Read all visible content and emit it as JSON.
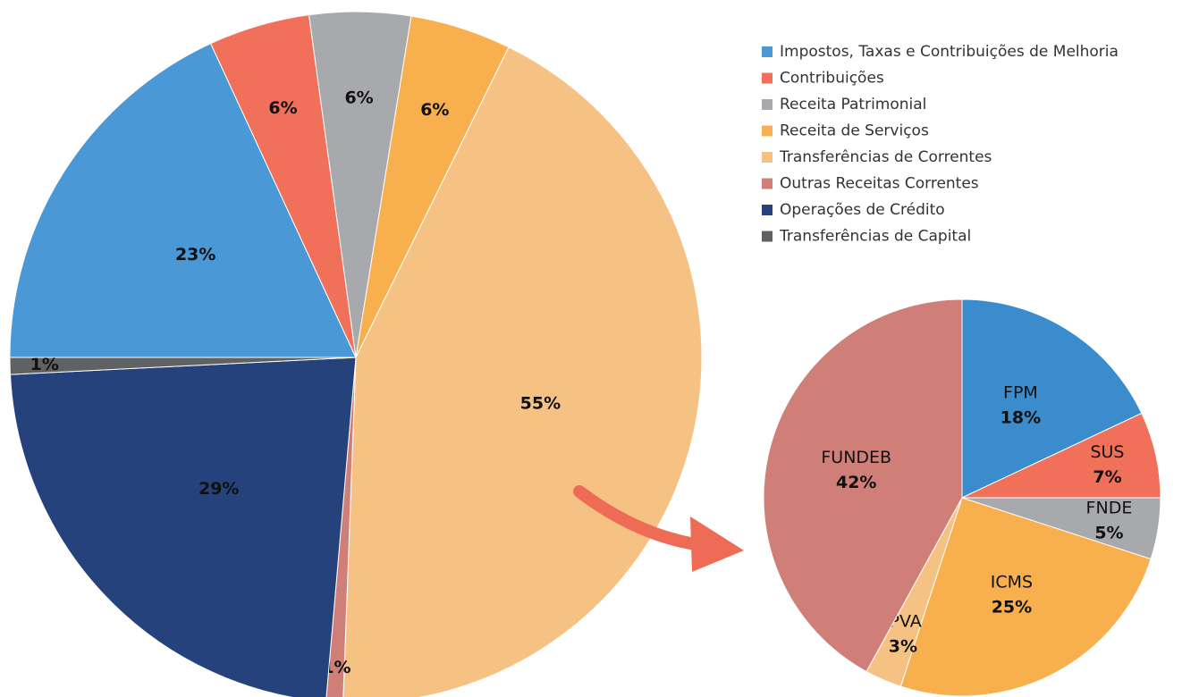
{
  "chart_data": [
    {
      "type": "pie",
      "categories": [
        "Impostos, Taxas e Contribuições de Melhoria",
        "Contribuições",
        "Receita Patrimonial",
        "Receita de Serviços",
        "Transferências de Correntes",
        "Outras Receitas Correntes",
        "Operações de Crédito",
        "Transferências de Capital"
      ],
      "values": [
        23,
        6,
        6,
        6,
        55,
        1,
        29,
        1
      ],
      "value_labels": [
        "23%",
        "6%",
        "6%",
        "6%",
        "55%",
        "1%",
        "29%",
        "1%"
      ],
      "colors": [
        "#4a98d6",
        "#f0705a",
        "#a8a9ac",
        "#f8b04f",
        "#f6c283",
        "#cf7e78",
        "#25427c",
        "#5f6163"
      ],
      "legend": "top-right"
    },
    {
      "type": "pie",
      "categories": [
        "FPM",
        "SUS",
        "FNDE",
        "ICMS",
        "IPVA",
        "FUNDEB"
      ],
      "values": [
        18,
        7,
        5,
        25,
        3,
        42
      ],
      "value_labels": [
        "18%",
        "7%",
        "5%",
        "25%",
        "3%",
        "42%"
      ],
      "colors": [
        "#3a8ccc",
        "#f0705a",
        "#a8a9ac",
        "#f8b04f",
        "#f6c283",
        "#cf7e78"
      ]
    }
  ]
}
